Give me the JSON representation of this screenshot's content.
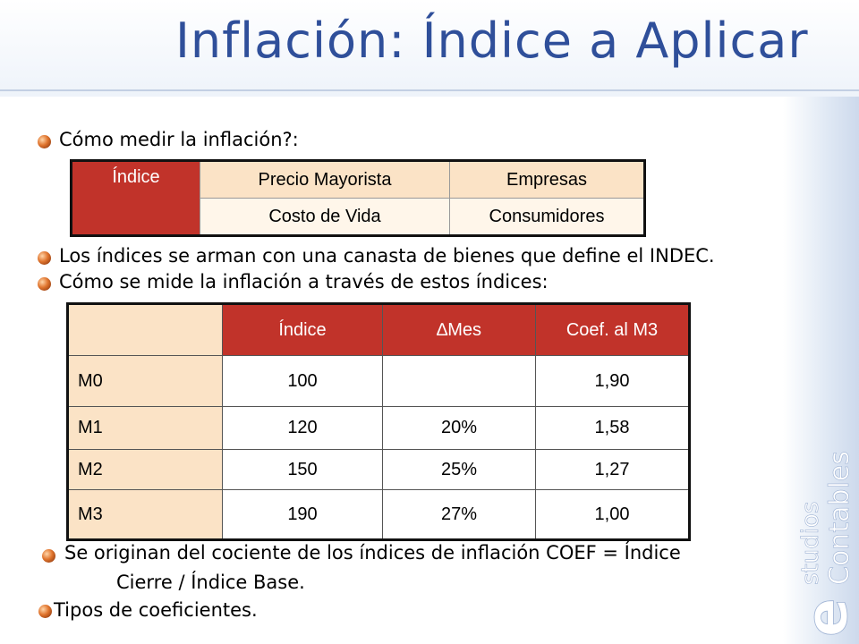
{
  "title": "Inflación: Índice a Aplicar",
  "bullets": {
    "b1": "Cómo medir la inflación?:",
    "b2": "Los índices se arman con una canasta de bienes que define el INDEC.",
    "b3": "Cómo se mide la inflación a través de estos índices:",
    "b4_line1": "Se originan del cociente de los índices de inflación COEF = Índice",
    "b4_line2": "Cierre / Índice Base.",
    "b5": "Tipos de coeficientes."
  },
  "table1": {
    "header": "Índice",
    "rows": [
      [
        "Precio Mayorista",
        "Empresas"
      ],
      [
        "Costo de Vida",
        "Consumidores"
      ]
    ]
  },
  "table2": {
    "headers": [
      "",
      "Índice",
      "∆Mes",
      "Coef. al M3"
    ],
    "rows": [
      [
        "M0",
        "100",
        "",
        "1,90"
      ],
      [
        "M1",
        "120",
        "20%",
        "1,58"
      ],
      [
        "M2",
        "150",
        "25%",
        "1,27"
      ],
      [
        "M3",
        "190",
        "27%",
        "1,00"
      ]
    ]
  },
  "brand": {
    "line1": "studios",
    "line2": "Contables",
    "letter": "e"
  },
  "colors": {
    "title": "#2f4f9a",
    "header_red": "#c1332a",
    "cell_peach": "#fbe3c6",
    "brand": "#ffffff"
  }
}
